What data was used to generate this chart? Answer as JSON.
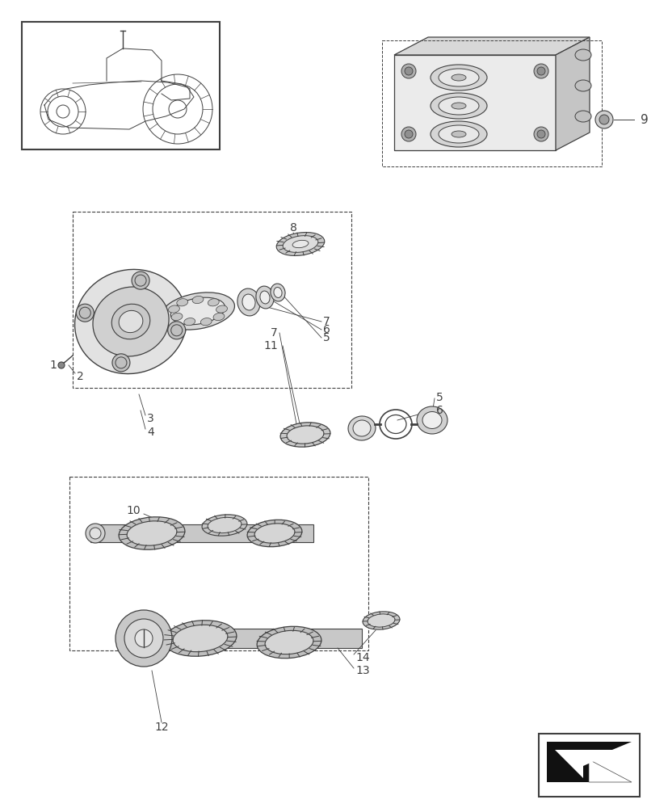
{
  "bg_color": "#ffffff",
  "lc": "#404040",
  "fig_width": 8.28,
  "fig_height": 10.0,
  "dpi": 100
}
